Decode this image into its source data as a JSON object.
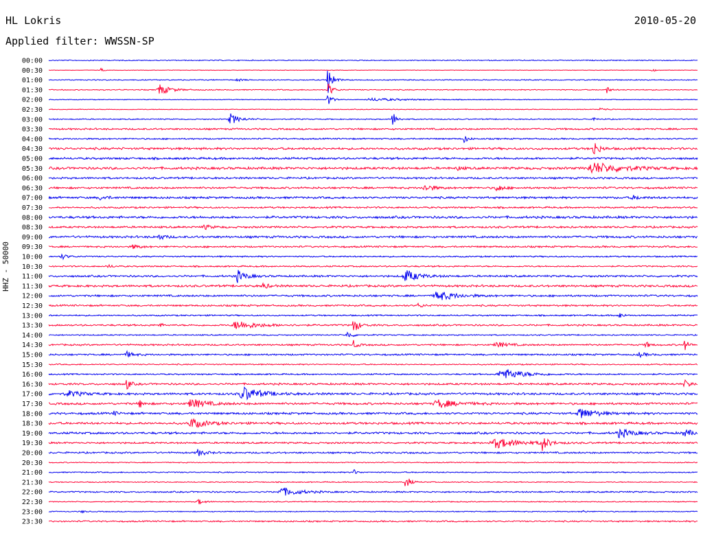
{
  "header": {
    "station": "HL Lokris",
    "date": "2010-05-20",
    "filter": "Applied filter: WWSSN-SP"
  },
  "colors": {
    "blue": "#0000ee",
    "red": "#ff0033"
  },
  "chart_data": {
    "type": "line",
    "chart_kind": "helicorder",
    "title": "HL Lokris",
    "date": "2010-05-20",
    "ylabel": "HHZ - 50000",
    "series_colors_alternate": [
      "#0000ee",
      "#ff0033"
    ],
    "rows": [
      {
        "label": "00:00",
        "noise": 0.8,
        "events": []
      },
      {
        "label": "00:30",
        "noise": 0.4,
        "events": [
          {
            "x": 0.08,
            "amp": 3,
            "w": 0.004
          },
          {
            "x": 0.93,
            "amp": 3,
            "w": 0.004
          }
        ]
      },
      {
        "label": "01:00",
        "noise": 0.8,
        "events": [
          {
            "x": 0.29,
            "amp": 3,
            "w": 0.006
          },
          {
            "x": 0.43,
            "amp": 24,
            "w": 0.006
          }
        ]
      },
      {
        "label": "01:30",
        "noise": 0.8,
        "events": [
          {
            "x": 0.17,
            "amp": 8,
            "w": 0.015
          },
          {
            "x": 0.43,
            "amp": 12,
            "w": 0.006
          },
          {
            "x": 0.86,
            "amp": 6,
            "w": 0.004
          }
        ]
      },
      {
        "label": "02:00",
        "noise": 0.6,
        "events": [
          {
            "x": 0.43,
            "amp": 12,
            "w": 0.005
          },
          {
            "x": 0.5,
            "amp": 2,
            "w": 0.05
          }
        ]
      },
      {
        "label": "02:30",
        "noise": 0.6,
        "events": [
          {
            "x": 0.85,
            "amp": 2,
            "w": 0.01
          }
        ]
      },
      {
        "label": "03:00",
        "noise": 0.9,
        "events": [
          {
            "x": 0.28,
            "amp": 8,
            "w": 0.012
          },
          {
            "x": 0.53,
            "amp": 12,
            "w": 0.005
          },
          {
            "x": 0.84,
            "amp": 2,
            "w": 0.005
          }
        ]
      },
      {
        "label": "03:30",
        "noise": 1.4,
        "events": []
      },
      {
        "label": "04:00",
        "noise": 1.2,
        "events": [
          {
            "x": 0.64,
            "amp": 6,
            "w": 0.005
          }
        ]
      },
      {
        "label": "04:30",
        "noise": 1.8,
        "events": [
          {
            "x": 0.84,
            "amp": 12,
            "w": 0.007
          }
        ]
      },
      {
        "label": "05:00",
        "noise": 1.8,
        "events": []
      },
      {
        "label": "05:30",
        "noise": 2,
        "events": [
          {
            "x": 0.84,
            "amp": 8,
            "w": 0.04
          },
          {
            "x": 0.63,
            "amp": 3,
            "w": 0.005
          }
        ]
      },
      {
        "label": "06:00",
        "noise": 1.6,
        "events": []
      },
      {
        "label": "06:30",
        "noise": 1.6,
        "events": [
          {
            "x": 0.58,
            "amp": 5,
            "w": 0.012
          },
          {
            "x": 0.69,
            "amp": 6,
            "w": 0.008
          }
        ]
      },
      {
        "label": "07:00",
        "noise": 1.8,
        "events": [
          {
            "x": 0.08,
            "amp": 3,
            "w": 0.01
          },
          {
            "x": 0.9,
            "amp": 3,
            "w": 0.01
          }
        ]
      },
      {
        "label": "07:30",
        "noise": 1.4,
        "events": []
      },
      {
        "label": "08:00",
        "noise": 2,
        "events": []
      },
      {
        "label": "08:30",
        "noise": 1.6,
        "events": [
          {
            "x": 0.24,
            "amp": 3,
            "w": 0.01
          }
        ]
      },
      {
        "label": "09:00",
        "noise": 1.8,
        "events": [
          {
            "x": 0.17,
            "amp": 4,
            "w": 0.008
          }
        ]
      },
      {
        "label": "09:30",
        "noise": 1.4,
        "events": [
          {
            "x": 0.13,
            "amp": 3,
            "w": 0.01
          }
        ]
      },
      {
        "label": "10:00",
        "noise": 1.2,
        "events": [
          {
            "x": 0.02,
            "amp": 4,
            "w": 0.008
          }
        ]
      },
      {
        "label": "10:30",
        "noise": 1.2,
        "events": [
          {
            "x": 0.09,
            "amp": 3,
            "w": 0.006
          }
        ]
      },
      {
        "label": "11:00",
        "noise": 1.6,
        "events": [
          {
            "x": 0.29,
            "amp": 9,
            "w": 0.012
          },
          {
            "x": 0.55,
            "amp": 9,
            "w": 0.018
          }
        ]
      },
      {
        "label": "11:30",
        "noise": 1.8,
        "events": [
          {
            "x": 0.33,
            "amp": 4,
            "w": 0.008
          }
        ]
      },
      {
        "label": "12:00",
        "noise": 1.6,
        "events": [
          {
            "x": 0.6,
            "amp": 7,
            "w": 0.025
          }
        ]
      },
      {
        "label": "12:30",
        "noise": 1.4,
        "events": [
          {
            "x": 0.57,
            "amp": 4,
            "w": 0.006
          }
        ]
      },
      {
        "label": "13:00",
        "noise": 1.2,
        "events": [
          {
            "x": 0.88,
            "amp": 5,
            "w": 0.005
          }
        ]
      },
      {
        "label": "13:30",
        "noise": 1.4,
        "events": [
          {
            "x": 0.29,
            "amp": 6,
            "w": 0.03
          },
          {
            "x": 0.47,
            "amp": 12,
            "w": 0.007
          },
          {
            "x": 0.17,
            "amp": 3,
            "w": 0.005
          }
        ]
      },
      {
        "label": "14:00",
        "noise": 1,
        "events": [
          {
            "x": 0.46,
            "amp": 5,
            "w": 0.008
          }
        ]
      },
      {
        "label": "14:30",
        "noise": 1.4,
        "events": [
          {
            "x": 0.47,
            "amp": 6,
            "w": 0.005
          },
          {
            "x": 0.69,
            "amp": 4,
            "w": 0.015
          },
          {
            "x": 0.92,
            "amp": 5,
            "w": 0.005
          },
          {
            "x": 0.98,
            "amp": 8,
            "w": 0.005
          }
        ]
      },
      {
        "label": "15:00",
        "noise": 1.4,
        "events": [
          {
            "x": 0.12,
            "amp": 4,
            "w": 0.01
          },
          {
            "x": 0.91,
            "amp": 3,
            "w": 0.01
          }
        ]
      },
      {
        "label": "15:30",
        "noise": 1,
        "events": []
      },
      {
        "label": "16:00",
        "noise": 1.2,
        "events": [
          {
            "x": 0.7,
            "amp": 8,
            "w": 0.03
          }
        ]
      },
      {
        "label": "16:30",
        "noise": 1.6,
        "events": [
          {
            "x": 0.12,
            "amp": 9,
            "w": 0.005
          },
          {
            "x": 0.98,
            "amp": 5,
            "w": 0.01
          }
        ]
      },
      {
        "label": "17:00",
        "noise": 1.8,
        "events": [
          {
            "x": 0.03,
            "amp": 4,
            "w": 0.02
          },
          {
            "x": 0.3,
            "amp": 10,
            "w": 0.025
          }
        ]
      },
      {
        "label": "17:30",
        "noise": 1.8,
        "events": [
          {
            "x": 0.14,
            "amp": 6,
            "w": 0.005
          },
          {
            "x": 0.22,
            "amp": 7,
            "w": 0.02
          },
          {
            "x": 0.6,
            "amp": 6,
            "w": 0.025
          }
        ]
      },
      {
        "label": "18:00",
        "noise": 1.8,
        "events": [
          {
            "x": 0.82,
            "amp": 8,
            "w": 0.02
          },
          {
            "x": 0.1,
            "amp": 3,
            "w": 0.005
          }
        ]
      },
      {
        "label": "18:30",
        "noise": 1.8,
        "events": [
          {
            "x": 0.22,
            "amp": 7,
            "w": 0.02
          }
        ]
      },
      {
        "label": "19:00",
        "noise": 1.8,
        "events": [
          {
            "x": 0.88,
            "amp": 6,
            "w": 0.02
          },
          {
            "x": 0.98,
            "amp": 4,
            "w": 0.02
          }
        ]
      },
      {
        "label": "19:30",
        "noise": 1.4,
        "events": [
          {
            "x": 0.69,
            "amp": 7,
            "w": 0.035
          },
          {
            "x": 0.76,
            "amp": 12,
            "w": 0.008
          }
        ]
      },
      {
        "label": "20:00",
        "noise": 1.4,
        "events": [
          {
            "x": 0.23,
            "amp": 5,
            "w": 0.01
          }
        ]
      },
      {
        "label": "20:30",
        "noise": 0.8,
        "events": []
      },
      {
        "label": "21:00",
        "noise": 1,
        "events": [
          {
            "x": 0.47,
            "amp": 4,
            "w": 0.005
          }
        ]
      },
      {
        "label": "21:30",
        "noise": 0.8,
        "events": [
          {
            "x": 0.55,
            "amp": 11,
            "w": 0.006
          }
        ]
      },
      {
        "label": "22:00",
        "noise": 1.2,
        "events": [
          {
            "x": 0.36,
            "amp": 6,
            "w": 0.025
          }
        ]
      },
      {
        "label": "22:30",
        "noise": 0.8,
        "events": [
          {
            "x": 0.23,
            "amp": 4,
            "w": 0.008
          }
        ]
      },
      {
        "label": "23:00",
        "noise": 0.8,
        "events": [
          {
            "x": 0.05,
            "amp": 2,
            "w": 0.005
          },
          {
            "x": 0.82,
            "amp": 3,
            "w": 0.005
          }
        ]
      },
      {
        "label": "23:30",
        "noise": 1.2,
        "events": []
      }
    ]
  }
}
